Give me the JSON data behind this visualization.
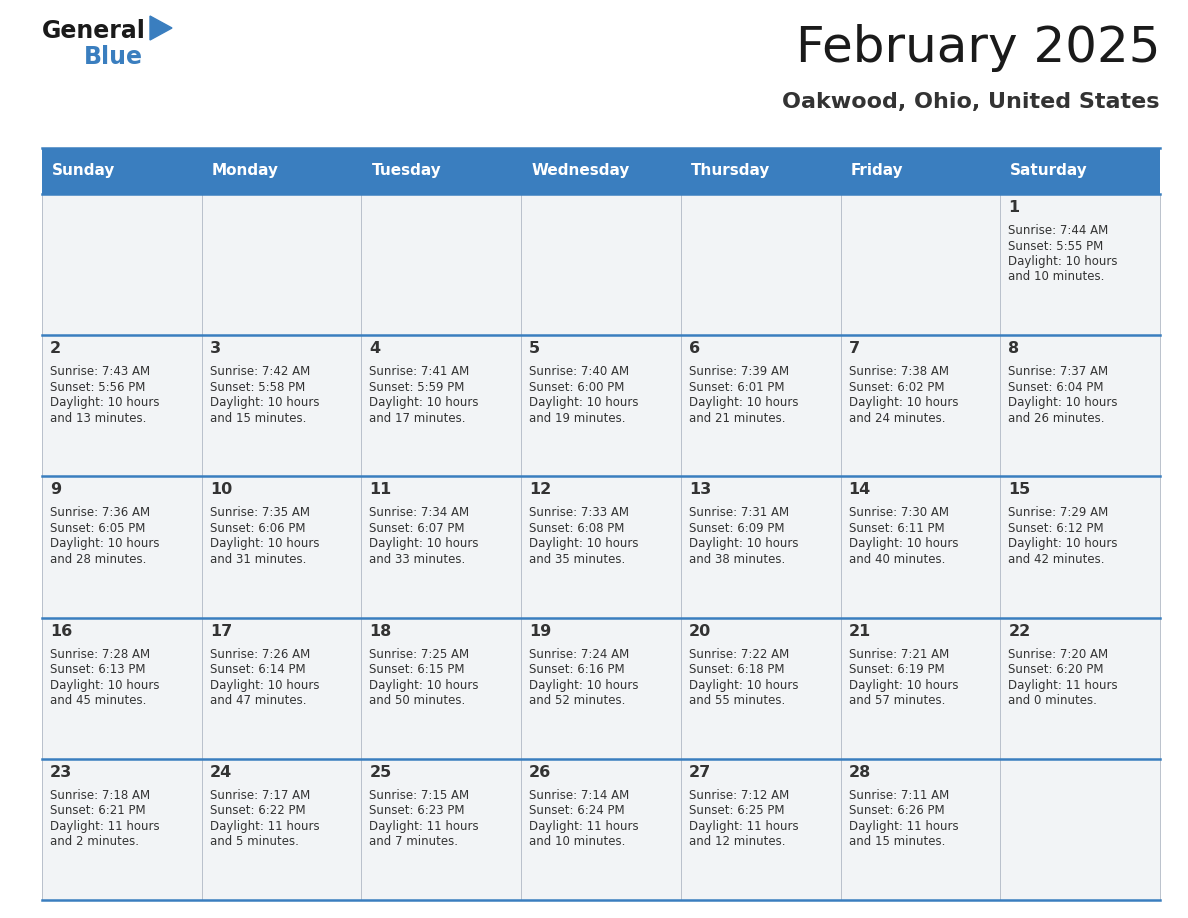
{
  "title": "February 2025",
  "subtitle": "Oakwood, Ohio, United States",
  "days_of_week": [
    "Sunday",
    "Monday",
    "Tuesday",
    "Wednesday",
    "Thursday",
    "Friday",
    "Saturday"
  ],
  "header_bg": "#3a7ebf",
  "header_text": "#ffffff",
  "cell_bg": "#f0f4f8",
  "border_color": "#3a7ebf",
  "cell_text_color": "#333333",
  "title_color": "#1a1a1a",
  "subtitle_color": "#333333",
  "calendar_data": [
    [
      null,
      null,
      null,
      null,
      null,
      null,
      {
        "day": 1,
        "sunrise": "7:44 AM",
        "sunset": "5:55 PM",
        "daylight_line1": "Daylight: 10 hours",
        "daylight_line2": "and 10 minutes."
      }
    ],
    [
      {
        "day": 2,
        "sunrise": "7:43 AM",
        "sunset": "5:56 PM",
        "daylight_line1": "Daylight: 10 hours",
        "daylight_line2": "and 13 minutes."
      },
      {
        "day": 3,
        "sunrise": "7:42 AM",
        "sunset": "5:58 PM",
        "daylight_line1": "Daylight: 10 hours",
        "daylight_line2": "and 15 minutes."
      },
      {
        "day": 4,
        "sunrise": "7:41 AM",
        "sunset": "5:59 PM",
        "daylight_line1": "Daylight: 10 hours",
        "daylight_line2": "and 17 minutes."
      },
      {
        "day": 5,
        "sunrise": "7:40 AM",
        "sunset": "6:00 PM",
        "daylight_line1": "Daylight: 10 hours",
        "daylight_line2": "and 19 minutes."
      },
      {
        "day": 6,
        "sunrise": "7:39 AM",
        "sunset": "6:01 PM",
        "daylight_line1": "Daylight: 10 hours",
        "daylight_line2": "and 21 minutes."
      },
      {
        "day": 7,
        "sunrise": "7:38 AM",
        "sunset": "6:02 PM",
        "daylight_line1": "Daylight: 10 hours",
        "daylight_line2": "and 24 minutes."
      },
      {
        "day": 8,
        "sunrise": "7:37 AM",
        "sunset": "6:04 PM",
        "daylight_line1": "Daylight: 10 hours",
        "daylight_line2": "and 26 minutes."
      }
    ],
    [
      {
        "day": 9,
        "sunrise": "7:36 AM",
        "sunset": "6:05 PM",
        "daylight_line1": "Daylight: 10 hours",
        "daylight_line2": "and 28 minutes."
      },
      {
        "day": 10,
        "sunrise": "7:35 AM",
        "sunset": "6:06 PM",
        "daylight_line1": "Daylight: 10 hours",
        "daylight_line2": "and 31 minutes."
      },
      {
        "day": 11,
        "sunrise": "7:34 AM",
        "sunset": "6:07 PM",
        "daylight_line1": "Daylight: 10 hours",
        "daylight_line2": "and 33 minutes."
      },
      {
        "day": 12,
        "sunrise": "7:33 AM",
        "sunset": "6:08 PM",
        "daylight_line1": "Daylight: 10 hours",
        "daylight_line2": "and 35 minutes."
      },
      {
        "day": 13,
        "sunrise": "7:31 AM",
        "sunset": "6:09 PM",
        "daylight_line1": "Daylight: 10 hours",
        "daylight_line2": "and 38 minutes."
      },
      {
        "day": 14,
        "sunrise": "7:30 AM",
        "sunset": "6:11 PM",
        "daylight_line1": "Daylight: 10 hours",
        "daylight_line2": "and 40 minutes."
      },
      {
        "day": 15,
        "sunrise": "7:29 AM",
        "sunset": "6:12 PM",
        "daylight_line1": "Daylight: 10 hours",
        "daylight_line2": "and 42 minutes."
      }
    ],
    [
      {
        "day": 16,
        "sunrise": "7:28 AM",
        "sunset": "6:13 PM",
        "daylight_line1": "Daylight: 10 hours",
        "daylight_line2": "and 45 minutes."
      },
      {
        "day": 17,
        "sunrise": "7:26 AM",
        "sunset": "6:14 PM",
        "daylight_line1": "Daylight: 10 hours",
        "daylight_line2": "and 47 minutes."
      },
      {
        "day": 18,
        "sunrise": "7:25 AM",
        "sunset": "6:15 PM",
        "daylight_line1": "Daylight: 10 hours",
        "daylight_line2": "and 50 minutes."
      },
      {
        "day": 19,
        "sunrise": "7:24 AM",
        "sunset": "6:16 PM",
        "daylight_line1": "Daylight: 10 hours",
        "daylight_line2": "and 52 minutes."
      },
      {
        "day": 20,
        "sunrise": "7:22 AM",
        "sunset": "6:18 PM",
        "daylight_line1": "Daylight: 10 hours",
        "daylight_line2": "and 55 minutes."
      },
      {
        "day": 21,
        "sunrise": "7:21 AM",
        "sunset": "6:19 PM",
        "daylight_line1": "Daylight: 10 hours",
        "daylight_line2": "and 57 minutes."
      },
      {
        "day": 22,
        "sunrise": "7:20 AM",
        "sunset": "6:20 PM",
        "daylight_line1": "Daylight: 11 hours",
        "daylight_line2": "and 0 minutes."
      }
    ],
    [
      {
        "day": 23,
        "sunrise": "7:18 AM",
        "sunset": "6:21 PM",
        "daylight_line1": "Daylight: 11 hours",
        "daylight_line2": "and 2 minutes."
      },
      {
        "day": 24,
        "sunrise": "7:17 AM",
        "sunset": "6:22 PM",
        "daylight_line1": "Daylight: 11 hours",
        "daylight_line2": "and 5 minutes."
      },
      {
        "day": 25,
        "sunrise": "7:15 AM",
        "sunset": "6:23 PM",
        "daylight_line1": "Daylight: 11 hours",
        "daylight_line2": "and 7 minutes."
      },
      {
        "day": 26,
        "sunrise": "7:14 AM",
        "sunset": "6:24 PM",
        "daylight_line1": "Daylight: 11 hours",
        "daylight_line2": "and 10 minutes."
      },
      {
        "day": 27,
        "sunrise": "7:12 AM",
        "sunset": "6:25 PM",
        "daylight_line1": "Daylight: 11 hours",
        "daylight_line2": "and 12 minutes."
      },
      {
        "day": 28,
        "sunrise": "7:11 AM",
        "sunset": "6:26 PM",
        "daylight_line1": "Daylight: 11 hours",
        "daylight_line2": "and 15 minutes."
      },
      null
    ]
  ]
}
